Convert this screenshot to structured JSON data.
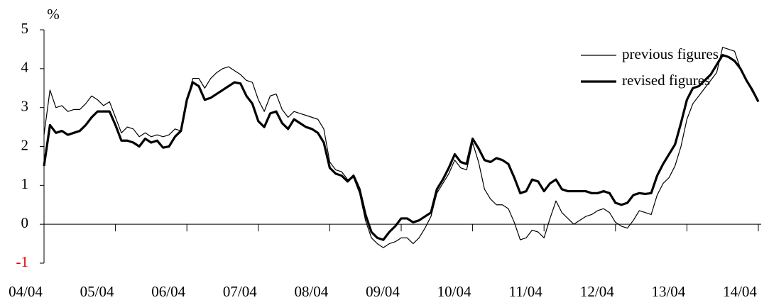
{
  "chart_data": {
    "type": "line",
    "y_label": "%",
    "categories": [
      "04/04",
      null,
      null,
      null,
      null,
      null,
      null,
      null,
      null,
      null,
      null,
      null,
      "05/04",
      null,
      null,
      null,
      null,
      null,
      null,
      null,
      null,
      null,
      null,
      null,
      "06/04",
      null,
      null,
      null,
      null,
      null,
      null,
      null,
      null,
      null,
      null,
      null,
      "07/04",
      null,
      null,
      null,
      null,
      null,
      null,
      null,
      null,
      null,
      null,
      null,
      "08/04",
      null,
      null,
      null,
      null,
      null,
      null,
      null,
      null,
      null,
      null,
      null,
      "09/04",
      null,
      null,
      null,
      null,
      null,
      null,
      null,
      null,
      null,
      null,
      null,
      "10/04",
      null,
      null,
      null,
      null,
      null,
      null,
      null,
      null,
      null,
      null,
      null,
      "11/04",
      null,
      null,
      null,
      null,
      null,
      null,
      null,
      null,
      null,
      null,
      null,
      "12/04",
      null,
      null,
      null,
      null,
      null,
      null,
      null,
      null,
      null,
      null,
      null,
      "13/04",
      null,
      null,
      null,
      null,
      null,
      null,
      null,
      null,
      null,
      null,
      null,
      "14/04"
    ],
    "series": [
      {
        "name": "previous figures",
        "color": "#000000",
        "width": 1.2,
        "values": [
          2.3,
          3.45,
          3.0,
          3.05,
          2.9,
          2.95,
          2.95,
          3.1,
          3.3,
          3.2,
          3.05,
          3.15,
          2.75,
          2.35,
          2.5,
          2.45,
          2.25,
          2.35,
          2.25,
          2.3,
          2.25,
          2.3,
          2.45,
          2.4,
          3.2,
          3.75,
          3.75,
          3.5,
          3.75,
          3.9,
          4.0,
          4.05,
          3.95,
          3.85,
          3.7,
          3.65,
          3.2,
          2.9,
          3.3,
          3.35,
          2.95,
          2.75,
          2.9,
          2.85,
          2.8,
          2.75,
          2.7,
          2.45,
          1.6,
          1.4,
          1.35,
          1.15,
          1.2,
          0.8,
          0.1,
          -0.35,
          -0.5,
          -0.6,
          -0.5,
          -0.45,
          -0.35,
          -0.35,
          -0.5,
          -0.35,
          -0.1,
          0.2,
          0.8,
          1.05,
          1.3,
          1.65,
          1.45,
          1.4,
          2.1,
          1.6,
          0.9,
          0.65,
          0.5,
          0.5,
          0.4,
          0.05,
          -0.4,
          -0.35,
          -0.15,
          -0.2,
          -0.35,
          0.15,
          0.6,
          0.3,
          0.15,
          0.0,
          0.1,
          0.2,
          0.25,
          0.35,
          0.4,
          0.3,
          0.05,
          -0.05,
          -0.1,
          0.1,
          0.35,
          0.3,
          0.25,
          0.75,
          1.05,
          1.2,
          1.5,
          2.0,
          2.7,
          3.1,
          3.3,
          3.5,
          3.7,
          3.9,
          4.55,
          4.5,
          4.45,
          4.0,
          3.7,
          3.4,
          3.2
        ]
      },
      {
        "name": "revised figures",
        "color": "#000000",
        "width": 3.2,
        "values": [
          1.5,
          2.55,
          2.35,
          2.4,
          2.3,
          2.35,
          2.4,
          2.55,
          2.75,
          2.9,
          2.9,
          2.9,
          2.55,
          2.15,
          2.15,
          2.1,
          2.0,
          2.2,
          2.1,
          2.15,
          1.97,
          2.0,
          2.25,
          2.4,
          3.2,
          3.65,
          3.55,
          3.2,
          3.25,
          3.35,
          3.45,
          3.55,
          3.65,
          3.62,
          3.3,
          3.1,
          2.65,
          2.5,
          2.85,
          2.9,
          2.6,
          2.45,
          2.7,
          2.6,
          2.5,
          2.45,
          2.35,
          2.1,
          1.45,
          1.3,
          1.25,
          1.1,
          1.25,
          0.9,
          0.25,
          -0.2,
          -0.35,
          -0.4,
          -0.2,
          -0.05,
          0.15,
          0.15,
          0.05,
          0.1,
          0.2,
          0.3,
          0.9,
          1.15,
          1.45,
          1.8,
          1.6,
          1.55,
          2.2,
          1.95,
          1.65,
          1.6,
          1.7,
          1.65,
          1.55,
          1.2,
          0.8,
          0.85,
          1.15,
          1.1,
          0.85,
          1.05,
          1.15,
          0.9,
          0.85,
          0.85,
          0.85,
          0.85,
          0.8,
          0.8,
          0.85,
          0.8,
          0.55,
          0.5,
          0.55,
          0.75,
          0.8,
          0.78,
          0.8,
          1.25,
          1.55,
          1.8,
          2.05,
          2.6,
          3.2,
          3.5,
          3.55,
          3.7,
          3.85,
          4.1,
          4.35,
          4.3,
          4.2,
          4.0,
          3.7,
          3.45,
          3.15
        ]
      }
    ],
    "ylim": [
      -1,
      5
    ],
    "yticks": [
      -1,
      0,
      1,
      2,
      3,
      4,
      5
    ],
    "legend": "upper right"
  }
}
